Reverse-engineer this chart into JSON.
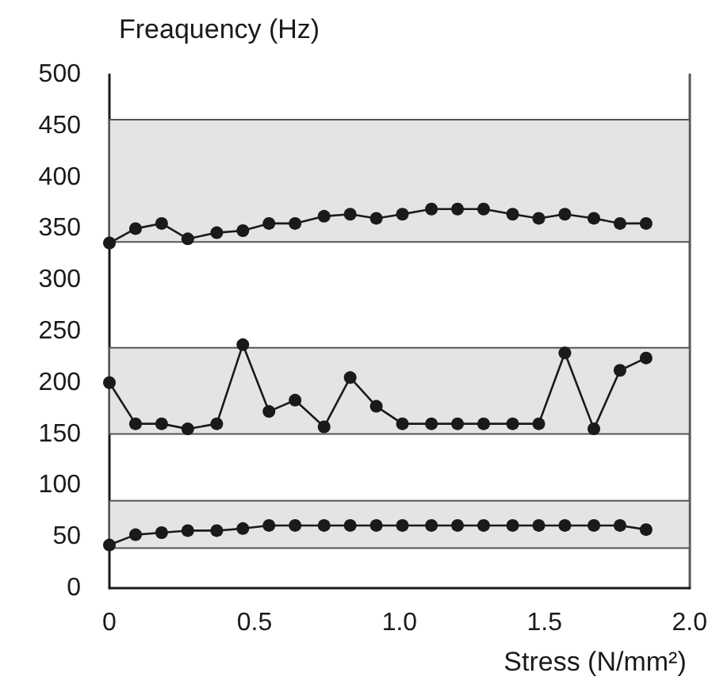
{
  "chart_data": {
    "type": "line",
    "ylabel": "Freaquency (Hz)",
    "xlabel": "Stress (N/mm²)",
    "x": [
      0,
      0.09,
      0.18,
      0.27,
      0.37,
      0.46,
      0.55,
      0.64,
      0.74,
      0.83,
      0.92,
      1.01,
      1.11,
      1.2,
      1.29,
      1.39,
      1.48,
      1.57,
      1.67,
      1.76,
      1.85
    ],
    "series": [
      {
        "color": "#1a1a1a",
        "values": [
          336,
          350,
          355,
          340,
          346,
          348,
          355,
          355,
          362,
          364,
          360,
          364,
          369,
          369,
          369,
          364,
          360,
          364,
          360,
          355,
          355
        ]
      },
      {
        "color": "#1a1a1a",
        "values": [
          200,
          160,
          160,
          155,
          160,
          237,
          172,
          183,
          157,
          205,
          177,
          160,
          160,
          160,
          160,
          160,
          160,
          229,
          155,
          212,
          224
        ]
      },
      {
        "color": "#1a1a1a",
        "values": [
          42,
          52,
          54,
          56,
          56,
          58,
          61,
          61,
          61,
          61,
          61,
          61,
          61,
          61,
          61,
          61,
          61,
          61,
          61,
          61,
          57
        ]
      }
    ],
    "bands": [
      {
        "axis": "y",
        "from": 337,
        "to": 456,
        "color": "#e3e4e6"
      },
      {
        "axis": "y",
        "from": 150,
        "to": 234,
        "color": "#e3e4e6"
      },
      {
        "axis": "y",
        "from": 39,
        "to": 85,
        "color": "#e3e4e6"
      }
    ],
    "xlim": [
      0,
      2
    ],
    "xticks": [
      0,
      0.5,
      {
        "value": 1,
        "label": "1.0"
      },
      1.5,
      {
        "value": 2,
        "label": "2.0"
      }
    ],
    "ylim": [
      0,
      500
    ],
    "yticks": [
      0,
      50,
      100,
      150,
      200,
      250,
      300,
      350,
      400,
      450,
      500
    ],
    "grid": false,
    "marker": "circle",
    "line_style": "solid"
  }
}
